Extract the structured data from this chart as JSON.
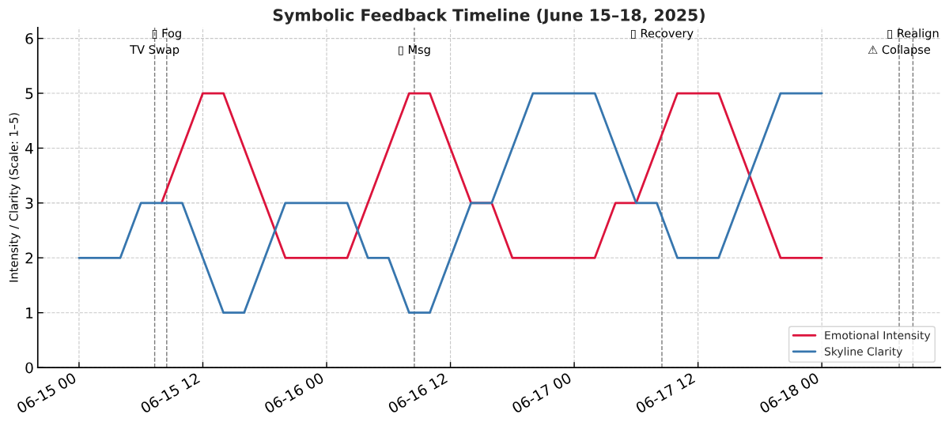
{
  "chart_data": {
    "type": "line",
    "title": "Symbolic Feedback Timeline (June 15–18, 2025)",
    "ylabel": "Intensity / Clarity (Scale: 1–5)",
    "x": [
      "2025-06-15T00:00",
      "2025-06-15T02:00",
      "2025-06-15T04:00",
      "2025-06-15T06:00",
      "2025-06-15T08:00",
      "2025-06-15T10:00",
      "2025-06-15T12:00",
      "2025-06-15T14:00",
      "2025-06-15T16:00",
      "2025-06-15T18:00",
      "2025-06-15T20:00",
      "2025-06-15T22:00",
      "2025-06-16T00:00",
      "2025-06-16T02:00",
      "2025-06-16T04:00",
      "2025-06-16T06:00",
      "2025-06-16T08:00",
      "2025-06-16T10:00",
      "2025-06-16T12:00",
      "2025-06-16T14:00",
      "2025-06-16T16:00",
      "2025-06-16T18:00",
      "2025-06-16T20:00",
      "2025-06-16T22:00",
      "2025-06-17T00:00",
      "2025-06-17T02:00",
      "2025-06-17T04:00",
      "2025-06-17T06:00",
      "2025-06-17T08:00",
      "2025-06-17T10:00",
      "2025-06-17T12:00",
      "2025-06-17T14:00",
      "2025-06-17T16:00",
      "2025-06-17T18:00",
      "2025-06-17T20:00",
      "2025-06-17T22:00",
      "2025-06-18T00:00"
    ],
    "series": [
      {
        "name": "Emotional Intensity",
        "color": "#dc143c",
        "values": [
          null,
          null,
          null,
          null,
          3,
          4,
          5,
          5,
          4,
          3,
          2,
          2,
          2,
          2,
          3,
          4,
          5,
          5,
          4,
          3,
          3,
          2,
          2,
          2,
          2,
          2,
          3,
          3,
          4,
          5,
          5,
          5,
          4,
          3,
          2,
          2,
          2
        ]
      },
      {
        "name": "Skyline Clarity",
        "color": "#3776ae",
        "values": [
          2,
          2,
          2,
          3,
          3,
          3,
          2,
          1,
          1,
          2,
          3,
          3,
          3,
          3,
          2,
          2,
          1,
          1,
          2,
          3,
          3,
          4,
          5,
          5,
          5,
          5,
          4,
          3,
          3,
          2,
          2,
          2,
          3,
          4,
          5,
          5,
          5
        ]
      }
    ],
    "xlim": [
      "2025-06-14T20:00",
      "2025-06-18T11:30"
    ],
    "xticks": [
      {
        "value": "2025-06-15T00:00",
        "label": "06-15 00"
      },
      {
        "value": "2025-06-15T12:00",
        "label": "06-15 12"
      },
      {
        "value": "2025-06-16T00:00",
        "label": "06-16 00"
      },
      {
        "value": "2025-06-16T12:00",
        "label": "06-16 12"
      },
      {
        "value": "2025-06-17T00:00",
        "label": "06-17 00"
      },
      {
        "value": "2025-06-17T12:00",
        "label": "06-17 12"
      },
      {
        "value": "2025-06-18T00:00",
        "label": "06-18 00"
      }
    ],
    "ylim": [
      0,
      6.2
    ],
    "yticks": [
      0,
      1,
      2,
      3,
      4,
      5,
      6
    ],
    "ref_lines": [
      {
        "axis": "x",
        "value": "2025-06-15T07:20",
        "label": "TV Swap",
        "color": "#7a7a7a",
        "line_style": "dashed"
      },
      {
        "axis": "x",
        "value": "2025-06-15T08:30",
        "label": "▯ Fog",
        "color": "#7a7a7a",
        "line_style": "dashed"
      },
      {
        "axis": "x",
        "value": "2025-06-16T08:30",
        "label": "▯ Msg",
        "color": "#7a7a7a",
        "line_style": "dashed"
      },
      {
        "axis": "x",
        "value": "2025-06-17T08:30",
        "label": "▯ Recovery",
        "color": "#7a7a7a",
        "line_style": "dashed"
      },
      {
        "axis": "x",
        "value": "2025-06-18T07:30",
        "label": "⚠ Collapse",
        "color": "#7a7a7a",
        "line_style": "dashed"
      },
      {
        "axis": "x",
        "value": "2025-06-18T08:50",
        "label": "▯ Realign",
        "color": "#7a7a7a",
        "line_style": "dashed"
      }
    ],
    "grid": true,
    "legend": "bottom right"
  }
}
